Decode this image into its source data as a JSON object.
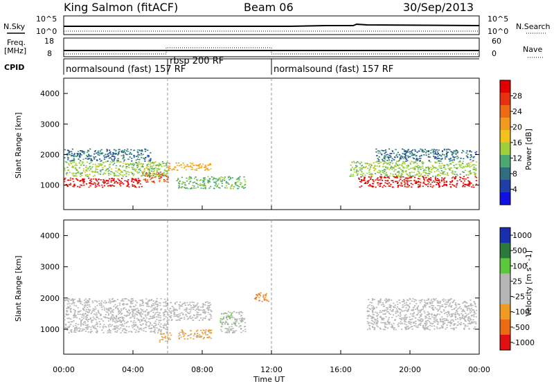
{
  "header": {
    "station": "King Salmon (fitACF)",
    "beam": "Beam 06",
    "date": "30/Sep/2013"
  },
  "top_panels": {
    "nsky_label": "N.Sky",
    "nsearch_label": "N.Search",
    "freq_label_1": "Freq.",
    "freq_label_2": "[MHz]",
    "nave_label": "Nave",
    "cpid_label": "CPID",
    "noise_left_ticks": [
      "10^5",
      "10^0"
    ],
    "noise_right_ticks": [
      "10^5",
      "10^0"
    ],
    "freq_left_ticks": [
      "18",
      "8"
    ],
    "freq_right_ticks": [
      "60",
      "0"
    ]
  },
  "cpid_segments": [
    {
      "label": "normalsound (fast) 157 RF",
      "start_hour": 0,
      "end_hour": 6
    },
    {
      "label": "rbsp 200 RF",
      "start_hour": 6,
      "end_hour": 12
    },
    {
      "label": "normalsound (fast) 157 RF",
      "start_hour": 12,
      "end_hour": 24
    }
  ],
  "x_axis": {
    "label": "Time UT",
    "ticks": [
      "00:00",
      "04:00",
      "08:00",
      "12:00",
      "16:00",
      "20:00",
      "00:00"
    ],
    "range_hours": [
      0,
      24
    ]
  },
  "colors": {
    "power": [
      "#1010e0",
      "#1f3fa8",
      "#2e6e80",
      "#4aa870",
      "#9ecf3c",
      "#f3c21a",
      "#f39a1e",
      "#f06a14",
      "#e83010",
      "#e00000"
    ],
    "velocity": [
      "#1a2fb0",
      "#2a7a3a",
      "#5ac83a",
      "#b6b6b6",
      "#b6b6b6",
      "#f19a22",
      "#ec6a12",
      "#e01010"
    ]
  },
  "chart_data": [
    {
      "type": "heatmap",
      "title": "",
      "ylabel": "Slant Range [km]",
      "xlabel": "",
      "ylim": [
        200,
        4500
      ],
      "yticks": [
        "1000",
        "2000",
        "3000",
        "4000"
      ],
      "colorbar": {
        "label": "Power [dB]",
        "ticks": [
          "4",
          "8",
          "12",
          "16",
          "20",
          "24",
          "28"
        ],
        "range": [
          0,
          32
        ]
      },
      "bands": [
        {
          "t0": 0,
          "t1": 4.5,
          "r0": 950,
          "r1": 1250,
          "value": 30
        },
        {
          "t0": 4.5,
          "t1": 6.0,
          "r0": 1100,
          "r1": 1450,
          "value": 26
        },
        {
          "t0": 6.0,
          "t1": 8.5,
          "r0": 1500,
          "r1": 1750,
          "value": 20
        },
        {
          "t0": 0,
          "t1": 6.0,
          "r0": 1300,
          "r1": 1800,
          "value": 14
        },
        {
          "t0": 0,
          "t1": 5.0,
          "r0": 1800,
          "r1": 2200,
          "value": 8
        },
        {
          "t0": 6.5,
          "t1": 10.5,
          "r0": 900,
          "r1": 1300,
          "value": 12
        },
        {
          "t0": 17.0,
          "t1": 23.8,
          "r0": 950,
          "r1": 1300,
          "value": 30
        },
        {
          "t0": 16.5,
          "t1": 23.8,
          "r0": 1300,
          "r1": 1800,
          "value": 14
        },
        {
          "t0": 18.0,
          "t1": 23.8,
          "r0": 1800,
          "r1": 2200,
          "value": 8
        }
      ]
    },
    {
      "type": "heatmap",
      "title": "",
      "ylabel": "Slant Range [km]",
      "xlabel": "Time UT",
      "ylim": [
        200,
        4500
      ],
      "yticks": [
        "1000",
        "2000",
        "3000",
        "4000"
      ],
      "colorbar": {
        "label": "Velocity [m s^-1]",
        "ticks": [
          "1000",
          "500",
          "100",
          "25",
          "-25",
          "-100",
          "-500",
          "-1000"
        ],
        "range": [
          -1000,
          1000
        ]
      },
      "bands": [
        {
          "t0": 0,
          "t1": 6.0,
          "r0": 900,
          "r1": 2000,
          "value": 0
        },
        {
          "t0": 6.0,
          "t1": 8.5,
          "r0": 1300,
          "r1": 1900,
          "value": 0
        },
        {
          "t0": 5.5,
          "t1": 6.2,
          "r0": 600,
          "r1": 900,
          "value": -300
        },
        {
          "t0": 6.5,
          "t1": 8.5,
          "r0": 700,
          "r1": 1000,
          "value": -300
        },
        {
          "t0": 9.0,
          "t1": 10.5,
          "r0": 900,
          "r1": 1600,
          "value": 150
        },
        {
          "t0": 11.0,
          "t1": 11.8,
          "r0": 1900,
          "r1": 2200,
          "value": -500
        },
        {
          "t0": 17.5,
          "t1": 23.8,
          "r0": 1000,
          "r1": 2000,
          "value": 0
        }
      ]
    }
  ]
}
